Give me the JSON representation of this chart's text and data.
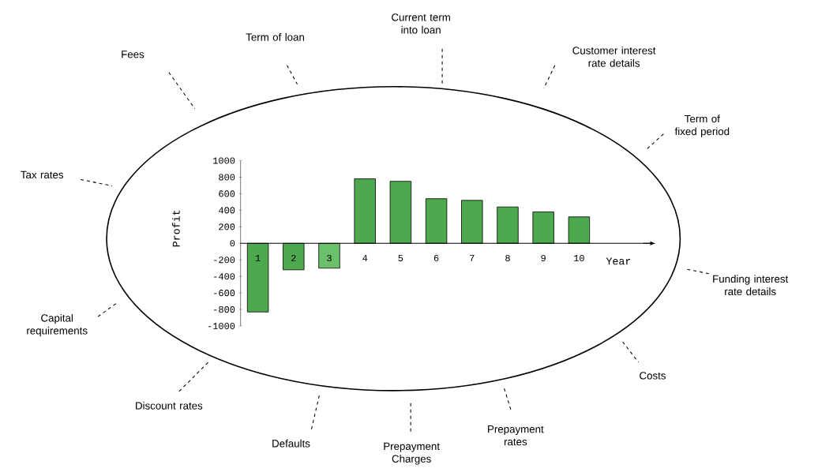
{
  "chart_data": {
    "type": "bar",
    "categories": [
      "1",
      "2",
      "3",
      "4",
      "5",
      "6",
      "7",
      "8",
      "9",
      "10"
    ],
    "values": [
      -830,
      -320,
      -300,
      780,
      750,
      540,
      520,
      440,
      380,
      320
    ],
    "colors": [
      "#4ea84e",
      "#4ea84e",
      "#6cc06c",
      "#4ea84e",
      "#4ea84e",
      "#4ea84e",
      "#4ea84e",
      "#4ea84e",
      "#4ea84e",
      "#4ea84e"
    ],
    "xlabel": "Year",
    "ylabel": "Profit",
    "ylim": [
      -1000,
      1000
    ],
    "yticks": [
      -1000,
      -800,
      -600,
      -400,
      -200,
      0,
      200,
      400,
      600,
      800,
      1000
    ],
    "annotations": [
      "Fees",
      "Term of loan",
      "Current term into loan",
      "Customer interest rate details",
      "Term of fixed period",
      "Tax rates",
      "Funding interest rate details",
      "Capital requirements",
      "Costs",
      "Discount rates",
      "Defaults",
      "Prepayment Charges",
      "Prepayment rates"
    ]
  }
}
